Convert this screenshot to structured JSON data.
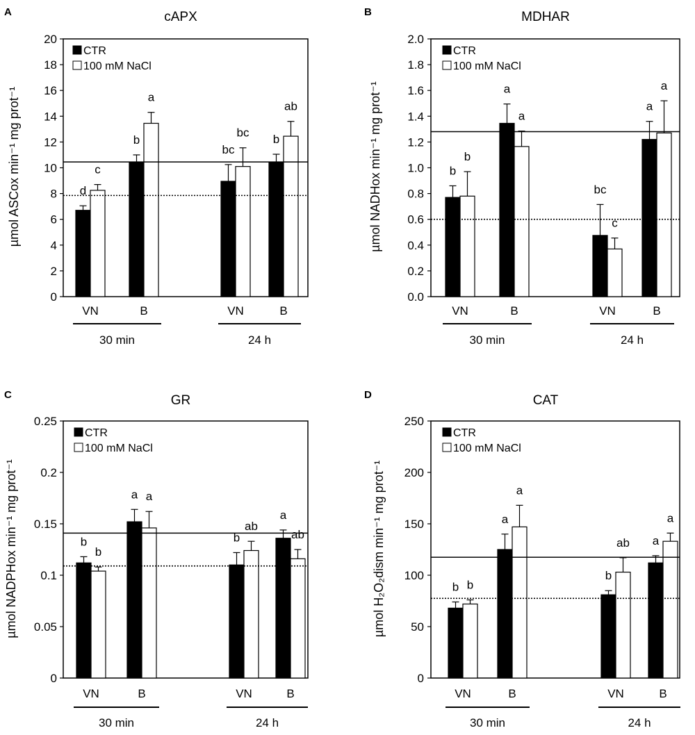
{
  "figure": {
    "legend_ctr": "CTR",
    "legend_nacl": "100 mM NaCl"
  },
  "chart_data": [
    {
      "panel": "A",
      "type": "bar",
      "title": "cAPX",
      "ylabel": "µmol ASCox min⁻¹ mg prot⁻¹",
      "ylim": [
        0,
        20
      ],
      "yticks": [
        "0",
        "2",
        "4",
        "6",
        "8",
        "10",
        "12",
        "14",
        "16",
        "18",
        "20"
      ],
      "categories": [
        "VN",
        "B",
        "VN",
        "B"
      ],
      "groups": [
        {
          "label": "30 min",
          "span": [
            0,
            1
          ]
        },
        {
          "label": "24 h",
          "span": [
            2,
            3
          ]
        }
      ],
      "series": [
        {
          "name": "CTR",
          "values": [
            6.7,
            10.4,
            8.95,
            10.4
          ],
          "errors": [
            0.35,
            0.6,
            1.3,
            0.65
          ],
          "letters": [
            "d",
            "b",
            "bc",
            "b"
          ]
        },
        {
          "name": "100 mM NaCl",
          "values": [
            8.25,
            13.45,
            10.1,
            12.45
          ],
          "errors": [
            0.45,
            0.85,
            1.45,
            1.15
          ],
          "letters": [
            "c",
            "a",
            "bc",
            "ab"
          ]
        }
      ],
      "reference_lines": [
        {
          "style": "solid",
          "value": 10.45
        },
        {
          "style": "dotted",
          "value": 7.85
        }
      ]
    },
    {
      "panel": "B",
      "type": "bar",
      "title": "MDHAR",
      "ylabel": "µmol NADHox min⁻¹ mg prot⁻¹",
      "ylim": [
        0,
        2.0
      ],
      "yticks": [
        "0.0",
        "0.2",
        "0.4",
        "0.6",
        "0.8",
        "1.0",
        "1.2",
        "1.4",
        "1.6",
        "1.8",
        "2.0"
      ],
      "categories": [
        "VN",
        "B",
        "VN",
        "B"
      ],
      "groups": [
        {
          "label": "30 min",
          "span": [
            0,
            1
          ]
        },
        {
          "label": "24 h",
          "span": [
            2,
            3
          ]
        }
      ],
      "series": [
        {
          "name": "CTR",
          "values": [
            0.77,
            1.345,
            0.475,
            1.22
          ],
          "errors": [
            0.09,
            0.15,
            0.24,
            0.14
          ],
          "letters": [
            "b",
            "a",
            "bc",
            "a"
          ]
        },
        {
          "name": "100 mM NaCl",
          "values": [
            0.78,
            1.165,
            0.37,
            1.27
          ],
          "errors": [
            0.19,
            0.12,
            0.085,
            0.25
          ],
          "letters": [
            "b",
            "a",
            "c",
            "a"
          ]
        }
      ],
      "reference_lines": [
        {
          "style": "solid",
          "value": 1.28
        },
        {
          "style": "dotted",
          "value": 0.6
        }
      ]
    },
    {
      "panel": "C",
      "type": "bar",
      "title": "GR",
      "ylabel": "µmol NADPHox min⁻¹ mg prot⁻¹",
      "ylim": [
        0,
        0.25
      ],
      "yticks": [
        "0",
        "0.05",
        "0.1",
        "0.15",
        "0.2",
        "0.25"
      ],
      "categories": [
        "VN",
        "B",
        "VN",
        "B"
      ],
      "groups": [
        {
          "label": "30 min",
          "span": [
            0,
            1
          ]
        },
        {
          "label": "24 h",
          "span": [
            2,
            3
          ]
        }
      ],
      "series": [
        {
          "name": "CTR",
          "values": [
            0.112,
            0.152,
            0.11,
            0.136
          ],
          "errors": [
            0.006,
            0.012,
            0.012,
            0.008
          ],
          "letters": [
            "b",
            "a",
            "b",
            "a"
          ]
        },
        {
          "name": "100 mM NaCl",
          "values": [
            0.104,
            0.146,
            0.124,
            0.116
          ],
          "errors": [
            0.004,
            0.016,
            0.009,
            0.009
          ],
          "letters": [
            "b",
            "a",
            "ab",
            "ab"
          ]
        }
      ],
      "reference_lines": [
        {
          "style": "solid",
          "value": 0.141
        },
        {
          "style": "dotted",
          "value": 0.109
        }
      ]
    },
    {
      "panel": "D",
      "type": "bar",
      "title": "CAT",
      "ylabel": "µmol H₂O₂dism min⁻¹ mg prot⁻¹",
      "ylim": [
        0,
        250
      ],
      "yticks": [
        "0",
        "50",
        "100",
        "150",
        "200",
        "250"
      ],
      "categories": [
        "VN",
        "B",
        "VN",
        "B"
      ],
      "groups": [
        {
          "label": "30 min",
          "span": [
            0,
            1
          ]
        },
        {
          "label": "24 h",
          "span": [
            2,
            3
          ]
        }
      ],
      "series": [
        {
          "name": "CTR",
          "values": [
            68,
            125,
            81,
            112
          ],
          "errors": [
            6,
            15,
            4,
            7
          ],
          "letters": [
            "b",
            "a",
            "b",
            "a"
          ]
        },
        {
          "name": "100 mM NaCl",
          "values": [
            72,
            147,
            103,
            133
          ],
          "errors": [
            4,
            21,
            14,
            8
          ],
          "letters": [
            "b",
            "a",
            "ab",
            "a"
          ]
        }
      ],
      "reference_lines": [
        {
          "style": "solid",
          "value": 117.5
        },
        {
          "style": "dotted",
          "value": 77.5
        }
      ]
    }
  ]
}
